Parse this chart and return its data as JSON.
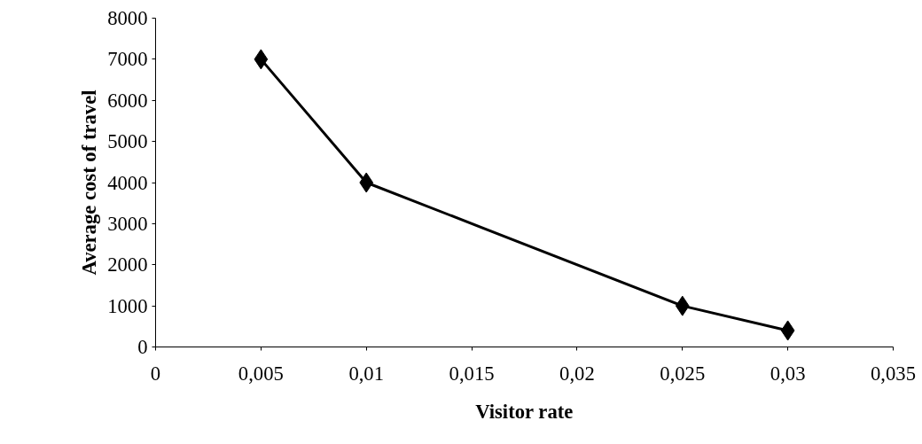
{
  "chart_data": {
    "type": "line",
    "xlabel": "Visitor rate",
    "ylabel": "Average cost of travel",
    "x": [
      0.005,
      0.01,
      0.025,
      0.03
    ],
    "series": [
      {
        "color": "#000000",
        "values": [
          7000,
          4000,
          1000,
          400
        ]
      }
    ],
    "xlim": [
      0,
      0.035
    ],
    "ylim": [
      0,
      8000
    ],
    "xticks": [
      0,
      {
        "value": 0.005,
        "label": "0,005"
      },
      {
        "value": 0.01,
        "label": "0,01"
      },
      {
        "value": 0.015,
        "label": "0,015"
      },
      {
        "value": 0.02,
        "label": "0,02"
      },
      {
        "value": 0.025,
        "label": "0,025"
      },
      {
        "value": 0.03,
        "label": "0,03"
      },
      {
        "value": 0.035,
        "label": "0,035"
      }
    ],
    "yticks": [
      0,
      1000,
      2000,
      3000,
      4000,
      5000,
      6000,
      7000,
      8000
    ],
    "grid": false,
    "marker": "diamond",
    "line_style": "solid"
  }
}
